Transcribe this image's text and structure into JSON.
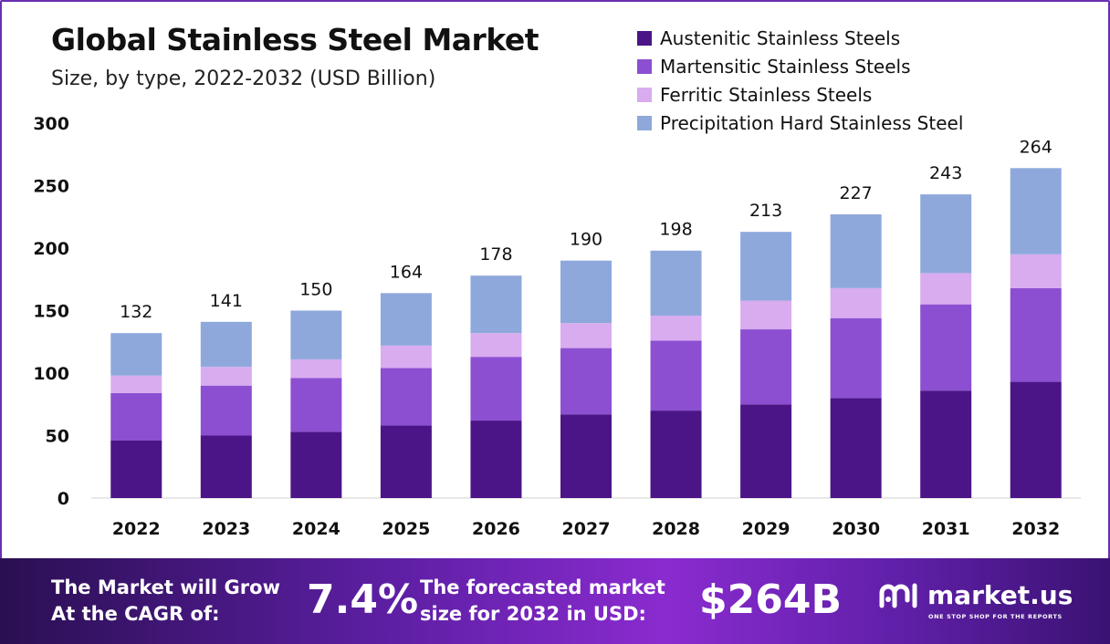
{
  "header": {
    "title": "Global Stainless Steel Market",
    "subtitle": "Size, by type, 2022-2032 (USD Billion)"
  },
  "chart_data": {
    "type": "bar",
    "stacked": true,
    "title": "Global Stainless Steel Market",
    "subtitle": "Size, by type, 2022-2032 (USD Billion)",
    "xlabel": "",
    "ylabel": "",
    "ylim": [
      0,
      300
    ],
    "yticks": [
      0,
      50,
      100,
      150,
      200,
      250,
      300
    ],
    "grid": false,
    "legend_position": "top-right",
    "categories": [
      "2022",
      "2023",
      "2024",
      "2025",
      "2026",
      "2027",
      "2028",
      "2029",
      "2030",
      "2031",
      "2032"
    ],
    "totals": [
      132,
      141,
      150,
      164,
      178,
      190,
      198,
      213,
      227,
      243,
      264
    ],
    "series": [
      {
        "name": "Austenitic Stainless Steels",
        "color": "#4b1587",
        "values": [
          46,
          50,
          53,
          58,
          62,
          67,
          70,
          75,
          80,
          86,
          93
        ]
      },
      {
        "name": "Martensitic Stainless Steels",
        "color": "#8c4fd1",
        "values": [
          38,
          40,
          43,
          46,
          51,
          53,
          56,
          60,
          64,
          69,
          75
        ]
      },
      {
        "name": "Ferritic Stainless Steels",
        "color": "#d8acef",
        "values": [
          14,
          15,
          15,
          18,
          19,
          20,
          20,
          23,
          24,
          25,
          27
        ]
      },
      {
        "name": "Precipitation Hard Stainless Steel",
        "color": "#8fa8dc",
        "values": [
          34,
          36,
          39,
          42,
          46,
          50,
          52,
          55,
          59,
          63,
          69
        ]
      }
    ]
  },
  "footer": {
    "cagr_label_line1": "The Market will Grow",
    "cagr_label_line2": "At the CAGR of:",
    "cagr_value": "7.4%",
    "forecast_label_line1": "The forecasted market",
    "forecast_label_line2": "size for 2032 in USD:",
    "forecast_value": "$264B",
    "brand_name": "market.us",
    "brand_tagline": "ONE STOP SHOP FOR THE REPORTS",
    "brand_icon": "market-us-logo-icon"
  }
}
